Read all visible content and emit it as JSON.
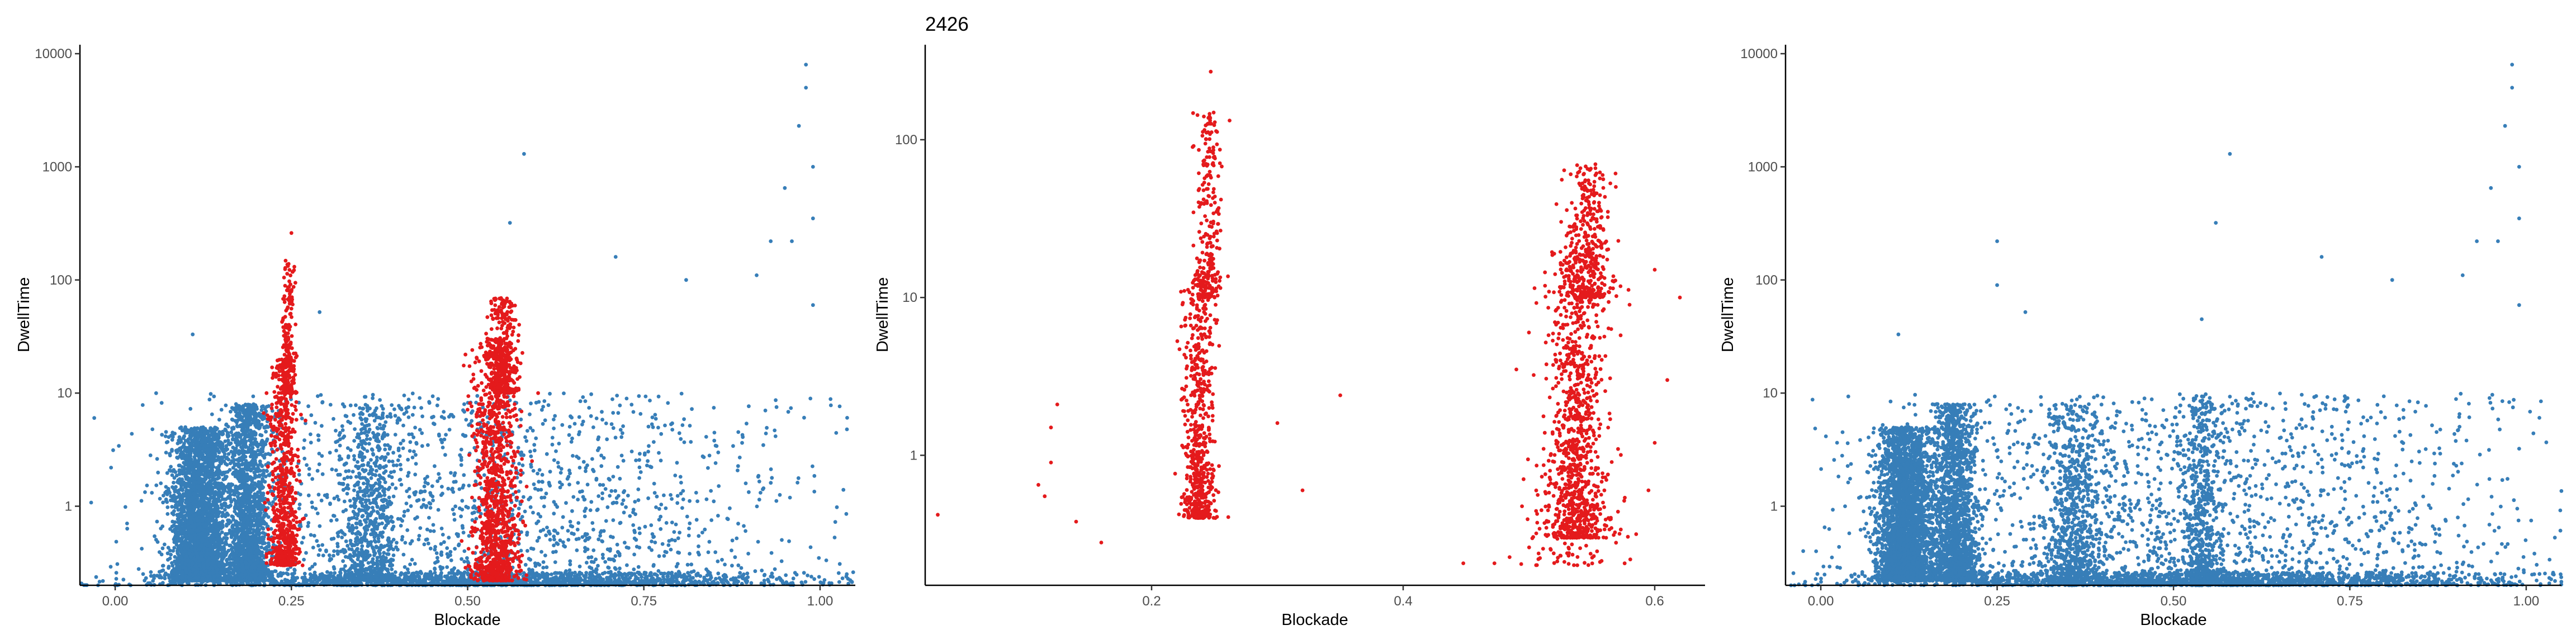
{
  "chart_data": [
    {
      "type": "scatter",
      "title": "",
      "xlabel": "Blockade",
      "ylabel": "DwellTime",
      "xlim": [
        0.0,
        1.0
      ],
      "ylim": [
        0.2,
        12000
      ],
      "y_scale": "log",
      "grid": false,
      "legend": "none",
      "x_ticks": [
        "0.00",
        "0.25",
        "0.50",
        "0.75",
        "1.00"
      ],
      "y_ticks": [
        "1",
        "10",
        "100",
        "1000",
        "10000"
      ],
      "series": [
        {
          "color": "#377EB8",
          "clusters": [
            {
              "x": [
                0.08,
                0.16
              ],
              "y": [
                0.22,
                5
              ],
              "n": 3000
            },
            {
              "x": [
                0.16,
                0.22
              ],
              "y": [
                0.22,
                8
              ],
              "n": 1600
            },
            {
              "x": [
                0.32,
                0.4
              ],
              "y": [
                0.22,
                8
              ],
              "n": 700
            },
            {
              "x": [
                0.05,
                1.0
              ],
              "y": [
                0.2,
                0.26
              ],
              "n": 1400
            },
            {
              "x": [
                0.05,
                1.0
              ],
              "y": [
                0.2,
                10
              ],
              "n": 1800
            }
          ],
          "outliers": [
            [
              0.11,
              33
            ],
            [
              0.58,
              1300
            ],
            [
              0.56,
              320
            ],
            [
              0.98,
              8000
            ],
            [
              0.98,
              5000
            ],
            [
              0.97,
              2300
            ],
            [
              0.99,
              1000
            ],
            [
              0.95,
              650
            ],
            [
              0.96,
              220
            ],
            [
              0.99,
              350
            ],
            [
              0.29,
              52
            ],
            [
              0.71,
              160
            ],
            [
              0.81,
              100
            ],
            [
              0.91,
              110
            ],
            [
              0.93,
              220
            ],
            [
              0.99,
              60
            ]
          ]
        },
        {
          "color": "#E41A1C",
          "clusters": [
            {
              "x": [
                0.22,
                0.26
              ],
              "y": [
                0.3,
                20
              ],
              "n": 700
            },
            {
              "x": [
                0.235,
                0.255
              ],
              "y": [
                10,
                150
              ],
              "n": 200
            },
            {
              "x": [
                0.51,
                0.57
              ],
              "y": [
                0.22,
                30
              ],
              "n": 1200
            },
            {
              "x": [
                0.53,
                0.57
              ],
              "y": [
                10,
                70
              ],
              "n": 300
            }
          ],
          "outliers": [
            [
              0.25,
              260
            ],
            [
              0.56,
              20
            ],
            [
              0.6,
              10
            ]
          ]
        }
      ]
    },
    {
      "type": "scatter",
      "title": "2426",
      "xlabel": "Blockade",
      "ylabel": "DwellTime",
      "xlim": [
        0.02,
        0.64
      ],
      "ylim": [
        0.15,
        400
      ],
      "y_scale": "log",
      "grid": false,
      "legend": "none",
      "x_ticks": [
        "0.2",
        "0.4",
        "0.6"
      ],
      "y_ticks": [
        "1",
        "10",
        "100"
      ],
      "series": [
        {
          "color": "#E41A1C",
          "clusters": [
            {
              "x": [
                0.225,
                0.25
              ],
              "y": [
                0.4,
                15
              ],
              "n": 650
            },
            {
              "x": [
                0.235,
                0.255
              ],
              "y": [
                10,
                150
              ],
              "n": 250
            },
            {
              "x": [
                0.515,
                0.56
              ],
              "y": [
                0.3,
                20
              ],
              "n": 1000
            },
            {
              "x": [
                0.53,
                0.565
              ],
              "y": [
                10,
                70
              ],
              "n": 350
            },
            {
              "x": [
                0.48,
                0.58
              ],
              "y": [
                0.2,
                1.2
              ],
              "n": 120
            }
          ],
          "outliers": [
            [
              0.247,
              270
            ],
            [
              0.03,
              0.42
            ],
            [
              0.12,
              0.9
            ],
            [
              0.125,
              2.1
            ],
            [
              0.12,
              1.5
            ],
            [
              0.11,
              0.65
            ],
            [
              0.115,
              0.55
            ],
            [
              0.14,
              0.38
            ],
            [
              0.16,
              0.28
            ],
            [
              0.3,
              1.6
            ],
            [
              0.35,
              2.4
            ],
            [
              0.32,
              0.6
            ],
            [
              0.6,
              15
            ],
            [
              0.62,
              10
            ],
            [
              0.58,
              9
            ],
            [
              0.61,
              3
            ],
            [
              0.6,
              1.2
            ],
            [
              0.595,
              0.6
            ],
            [
              0.49,
              3.5
            ],
            [
              0.5,
              6
            ]
          ]
        }
      ]
    },
    {
      "type": "scatter",
      "title": "",
      "xlabel": "Blockade",
      "ylabel": "DwellTime",
      "xlim": [
        0.0,
        1.0
      ],
      "ylim": [
        0.2,
        12000
      ],
      "y_scale": "log",
      "grid": false,
      "legend": "none",
      "x_ticks": [
        "0.00",
        "0.25",
        "0.50",
        "0.75",
        "1.00"
      ],
      "y_ticks": [
        "1",
        "10",
        "100",
        "1000",
        "10000"
      ],
      "series": [
        {
          "color": "#377EB8",
          "clusters": [
            {
              "x": [
                0.08,
                0.16
              ],
              "y": [
                0.22,
                5
              ],
              "n": 3000
            },
            {
              "x": [
                0.16,
                0.22
              ],
              "y": [
                0.22,
                8
              ],
              "n": 1600
            },
            {
              "x": [
                0.32,
                0.4
              ],
              "y": [
                0.22,
                8
              ],
              "n": 700
            },
            {
              "x": [
                0.51,
                0.57
              ],
              "y": [
                0.22,
                10
              ],
              "n": 500
            },
            {
              "x": [
                0.05,
                1.0
              ],
              "y": [
                0.2,
                0.26
              ],
              "n": 1400
            },
            {
              "x": [
                0.05,
                1.0
              ],
              "y": [
                0.2,
                10
              ],
              "n": 1800
            }
          ],
          "outliers": [
            [
              0.11,
              33
            ],
            [
              0.58,
              1300
            ],
            [
              0.56,
              320
            ],
            [
              0.98,
              8000
            ],
            [
              0.98,
              5000
            ],
            [
              0.97,
              2300
            ],
            [
              0.99,
              1000
            ],
            [
              0.95,
              650
            ],
            [
              0.96,
              220
            ],
            [
              0.99,
              350
            ],
            [
              0.25,
              220
            ],
            [
              0.25,
              90
            ],
            [
              0.29,
              52
            ],
            [
              0.54,
              45
            ],
            [
              0.71,
              160
            ],
            [
              0.81,
              100
            ],
            [
              0.91,
              110
            ],
            [
              0.93,
              220
            ],
            [
              0.99,
              60
            ]
          ]
        }
      ]
    }
  ]
}
